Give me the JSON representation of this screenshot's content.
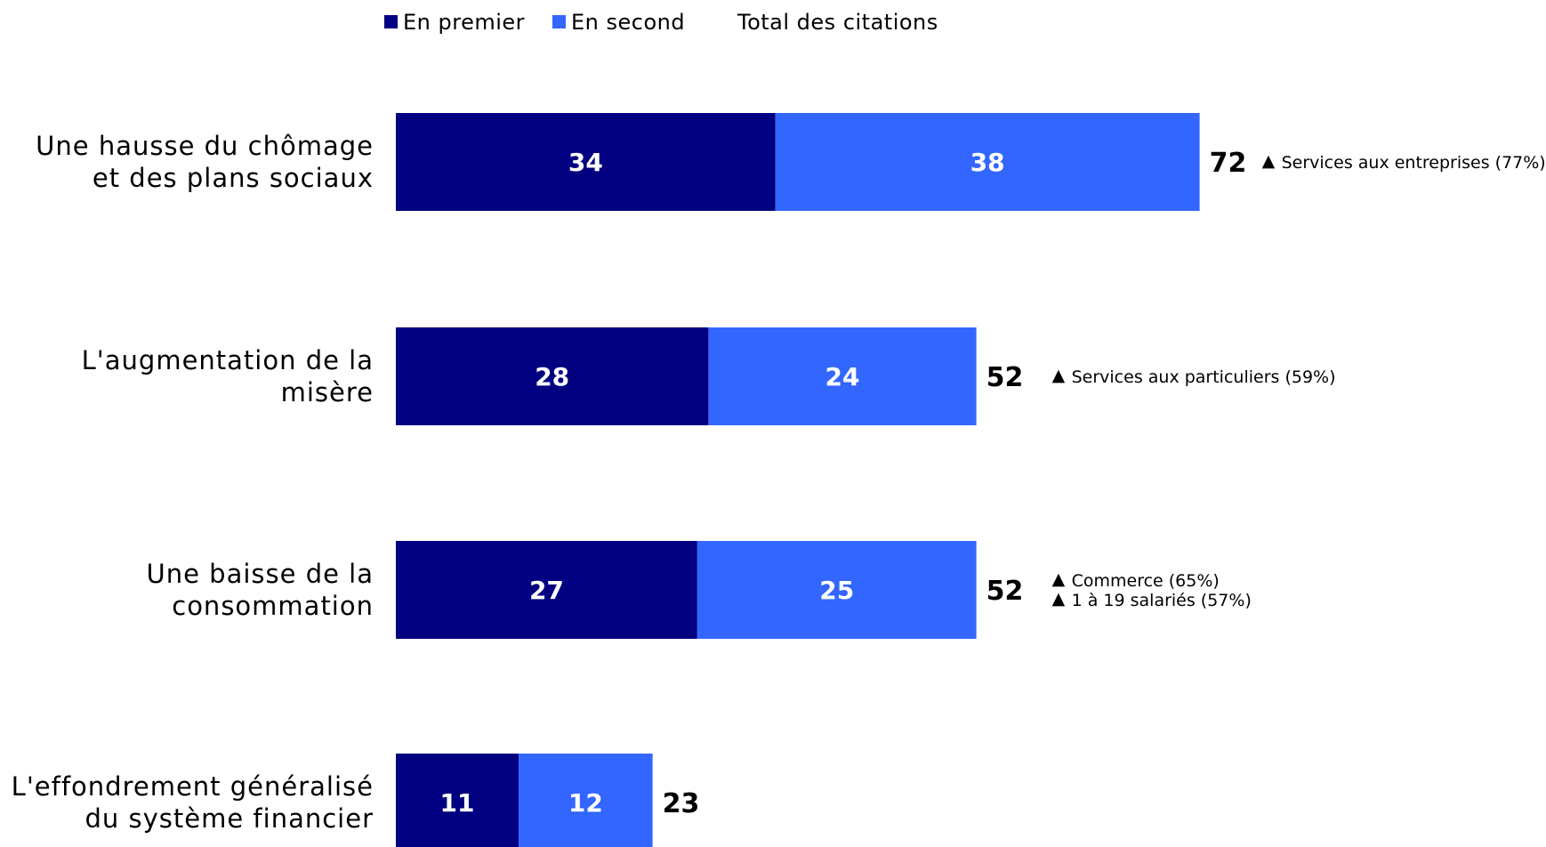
{
  "chart_data": {
    "type": "bar",
    "orientation": "horizontal",
    "stacked": true,
    "legend": {
      "placement": "top",
      "entries": [
        {
          "label": "En premier",
          "color": "#000080"
        },
        {
          "label": "En second",
          "color": "#3366ff"
        },
        {
          "label": "Total des citations",
          "color": null
        }
      ]
    },
    "categories": [
      [
        "Une hausse du chômage",
        "et des plans sociaux"
      ],
      [
        "L'augmentation de la",
        "misère"
      ],
      [
        "Une baisse de la",
        "consommation"
      ],
      [
        "L'effondrement généralisé",
        "du système financier"
      ]
    ],
    "series": [
      {
        "name": "En premier",
        "color": "#000080",
        "values": [
          34,
          28,
          27,
          11
        ]
      },
      {
        "name": "En second",
        "color": "#3366ff",
        "values": [
          38,
          24,
          25,
          12
        ]
      }
    ],
    "totals": [
      72,
      52,
      52,
      23
    ],
    "annotations": [
      [
        "Services aux entreprises (77%)"
      ],
      [
        "Services aux particuliers (59%)"
      ],
      [
        "Commerce (65%)",
        "1 à 19 salariés (57%)"
      ],
      []
    ],
    "annotation_marker": "▲",
    "grid": false,
    "xlim": [
      0,
      100
    ]
  }
}
